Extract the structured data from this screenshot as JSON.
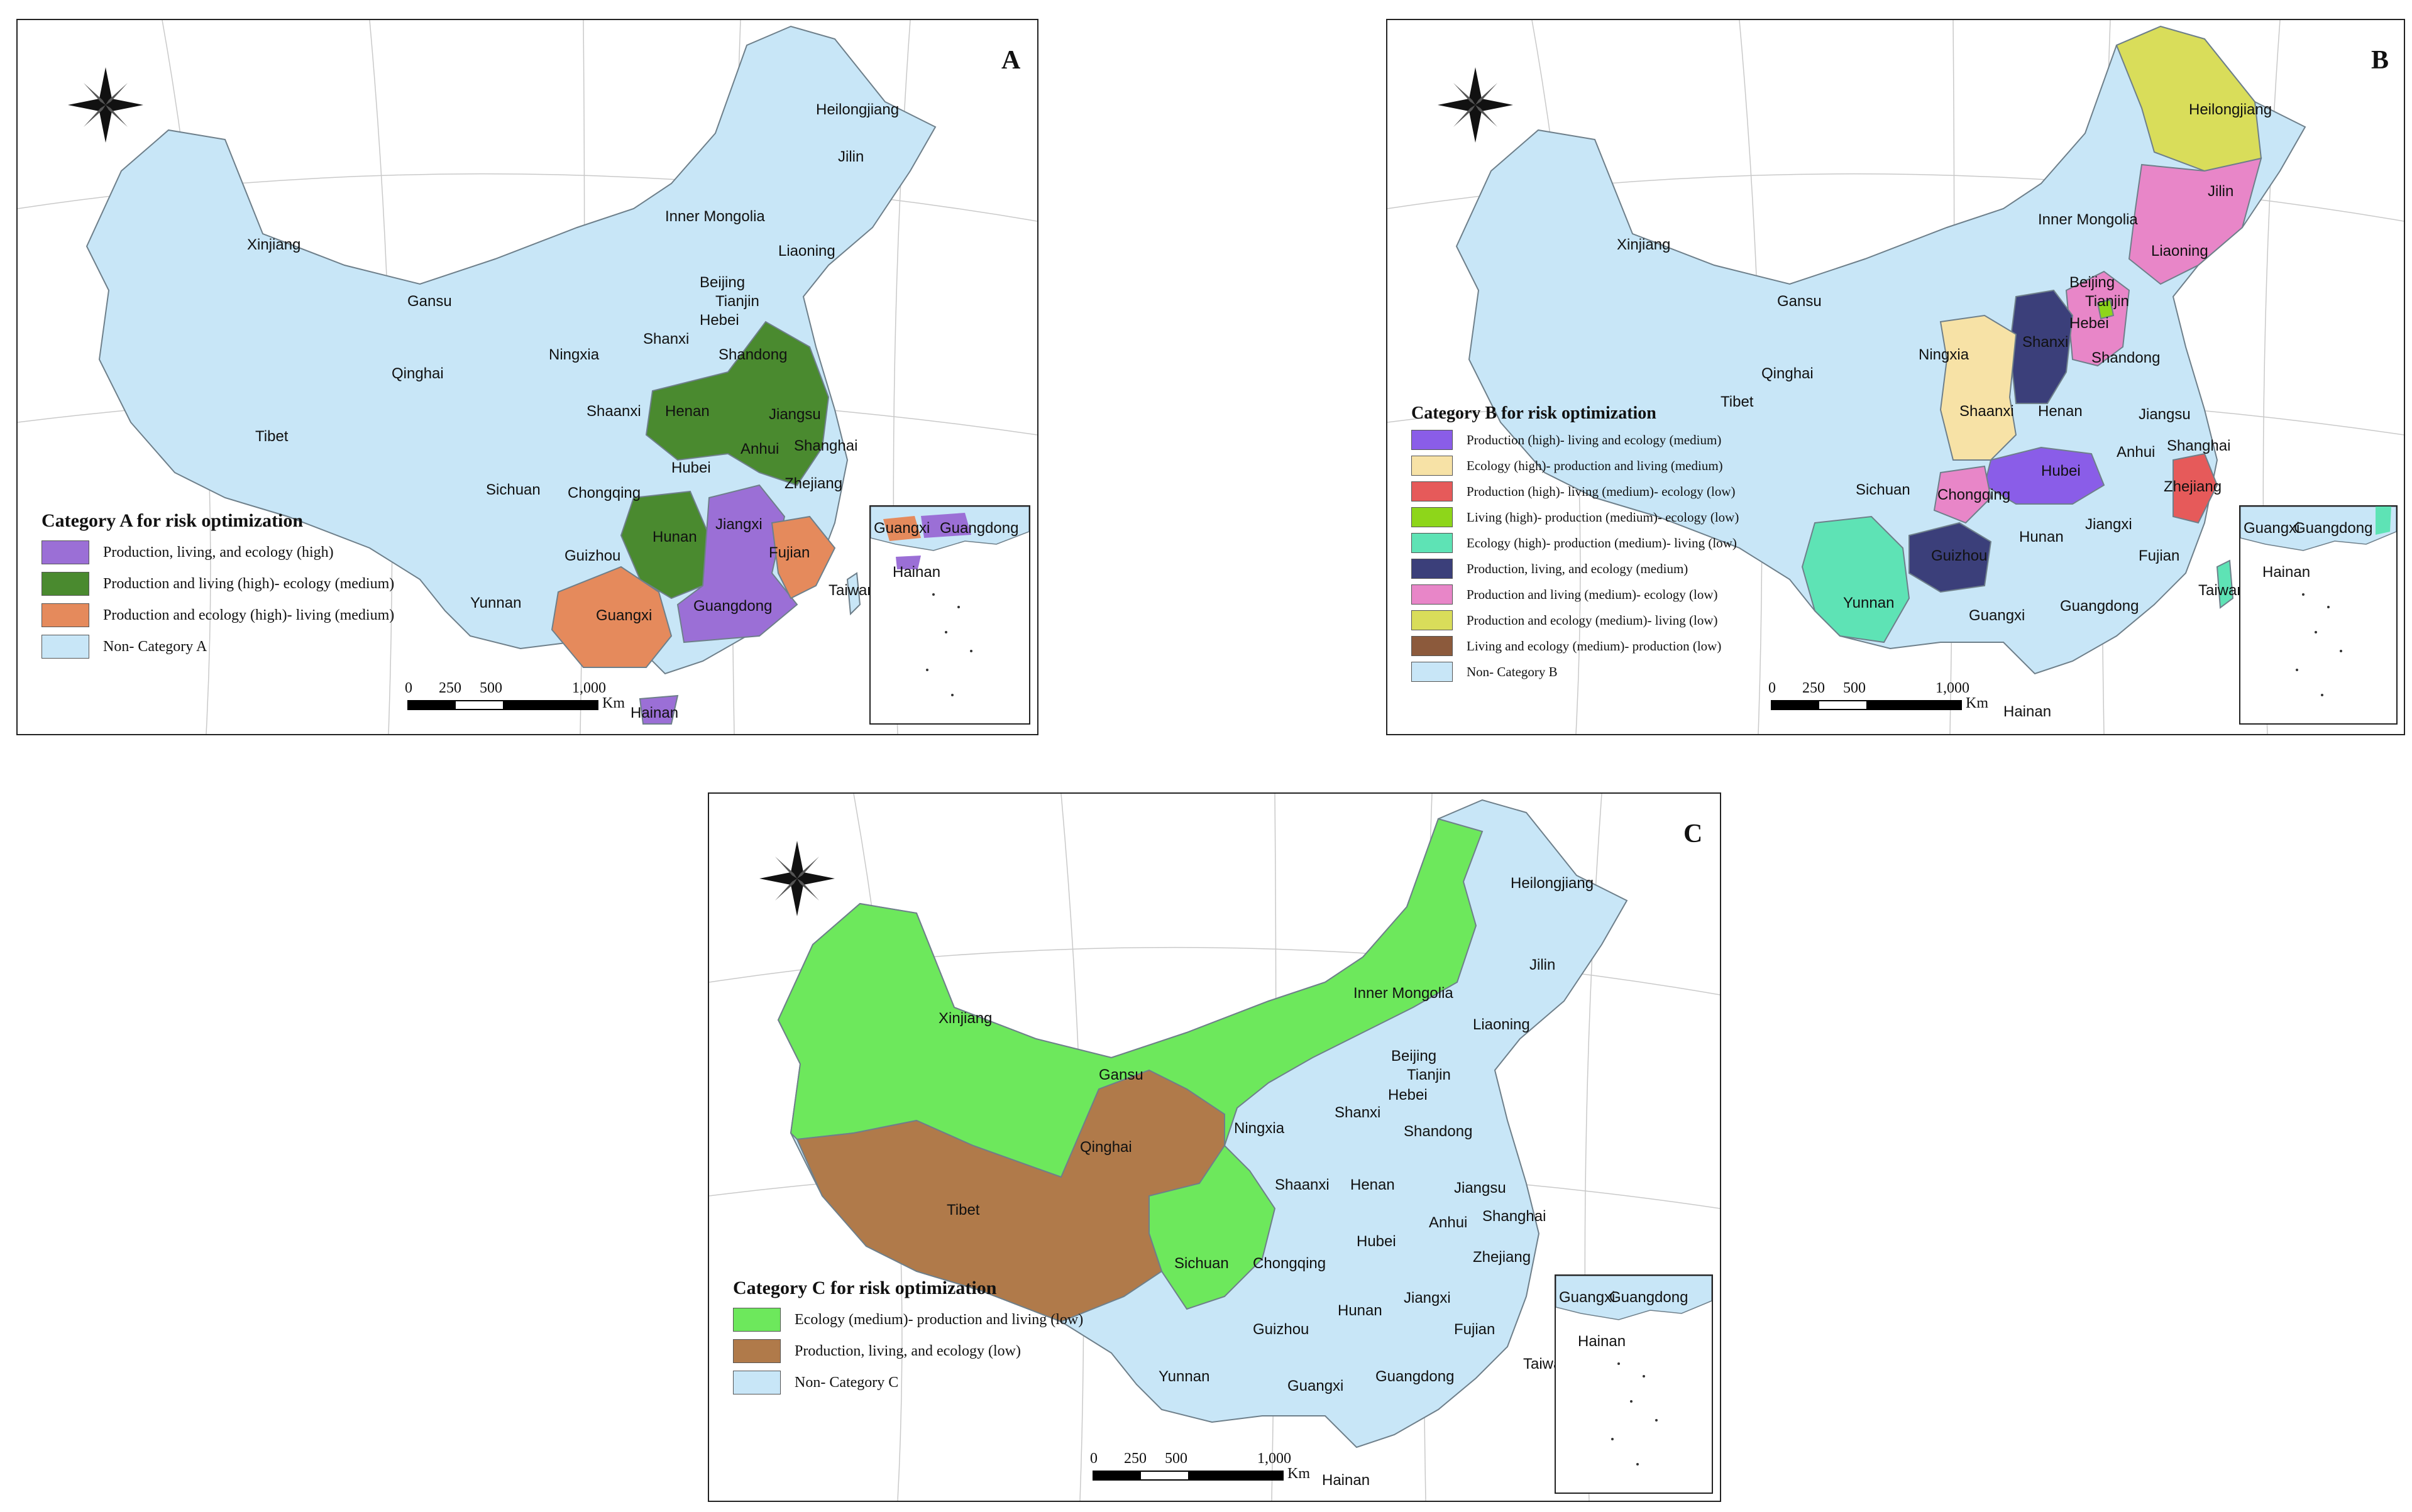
{
  "colors": {
    "non_category": "#c8e6f7",
    "boundary": "#6e7f8a",
    "a_prod_liv_eco_high": "#9b6fd6",
    "a_prod_liv_high_eco_med": "#4a8a2f",
    "a_prod_eco_high_liv_med": "#e58a5c",
    "b_prod_high_liv_eco_med": "#8a5de8",
    "b_eco_high_prod_liv_med": "#f7e2a6",
    "b_prod_high_liv_med_eco_low": "#e65a5a",
    "b_liv_high_prod_med_eco_low": "#8ed61a",
    "b_eco_high_prod_med_liv_low": "#5ee3b5",
    "b_prod_liv_eco_med": "#3b3f7a",
    "b_prod_liv_med_eco_low": "#e886c8",
    "b_prod_eco_med_liv_low": "#d9dd5a",
    "b_liv_eco_med_prod_low": "#8c5a3c",
    "c_eco_med_prod_liv_low": "#6de85c",
    "c_prod_liv_eco_low": "#b07a4a"
  },
  "panels": {
    "a": {
      "letter": "A",
      "legend_title": "Category A for risk optimization",
      "legend": [
        {
          "label": "Production, living, and ecology (high)",
          "color": "#9b6fd6"
        },
        {
          "label": "Production and living (high)- ecology (medium)",
          "color": "#4a8a2f"
        },
        {
          "label": "Production and ecology (high)- living (medium)",
          "color": "#e58a5c"
        },
        {
          "label": "Non- Category A",
          "color": "#c8e6f7"
        }
      ],
      "scale": {
        "ticks": [
          "0",
          "250",
          "500",
          "1,000"
        ],
        "unit": "Km"
      },
      "provinces": {
        "heilongjiang": "Heilongjiang",
        "jilin": "Jilin",
        "liaoning": "Liaoning",
        "inner_mongolia": "Inner Mongolia",
        "beijing": "Beijing",
        "tianjin": "Tianjin",
        "hebei": "Hebei",
        "shandong": "Shandong",
        "shanxi": "Shanxi",
        "henan": "Henan",
        "jiangsu": "Jiangsu",
        "anhui": "Anhui",
        "shanghai": "Shanghai",
        "zhejiang": "Zhejiang",
        "hubei": "Hubei",
        "hunan": "Hunan",
        "jiangxi": "Jiangxi",
        "fujian": "Fujian",
        "guangdong": "Guangdong",
        "guangxi": "Guangxi",
        "hainan": "Hainan",
        "taiwan": "Taiwan",
        "xinjiang": "Xinjiang",
        "gansu": "Gansu",
        "qinghai": "Qinghai",
        "ningxia": "Ningxia",
        "shaanxi": "Shaanxi",
        "tibet": "Tibet",
        "sichuan": "Sichuan",
        "chongqing": "Chongqing",
        "guizhou": "Guizhou",
        "yunnan": "Yunnan"
      },
      "inset_labels": {
        "guangxi": "Guangxi",
        "guangdong": "Guangdong",
        "hainan": "Hainan"
      }
    },
    "b": {
      "letter": "B",
      "legend_title": "Category B for risk optimization",
      "legend": [
        {
          "label": "Production (high)- living and ecology (medium)",
          "color": "#8a5de8"
        },
        {
          "label": "Ecology (high)- production and living (medium)",
          "color": "#f7e2a6"
        },
        {
          "label": "Production (high)- living (medium)- ecology (low)",
          "color": "#e65a5a"
        },
        {
          "label": "Living (high)- production (medium)- ecology (low)",
          "color": "#8ed61a"
        },
        {
          "label": "Ecology (high)- production (medium)- living (low)",
          "color": "#5ee3b5"
        },
        {
          "label": "Production, living, and ecology (medium)",
          "color": "#3b3f7a"
        },
        {
          "label": "Production and living (medium)- ecology (low)",
          "color": "#e886c8"
        },
        {
          "label": "Production and ecology (medium)- living (low)",
          "color": "#d9dd5a"
        },
        {
          "label": "Living and ecology (medium)- production (low)",
          "color": "#8c5a3c"
        },
        {
          "label": "Non- Category B",
          "color": "#c8e6f7"
        }
      ],
      "scale": {
        "ticks": [
          "0",
          "250",
          "500",
          "1,000"
        ],
        "unit": "Km"
      },
      "provinces": {
        "heilongjiang": "Heilongjiang",
        "jilin": "Jilin",
        "liaoning": "Liaoning",
        "inner_mongolia": "Inner Mongolia",
        "beijing": "Beijing",
        "tianjin": "Tianjin",
        "hebei": "Hebei",
        "shandong": "Shandong",
        "shanxi": "Shanxi",
        "henan": "Henan",
        "jiangsu": "Jiangsu",
        "anhui": "Anhui",
        "shanghai": "Shanghai",
        "zhejiang": "Zhejiang",
        "hubei": "Hubei",
        "hunan": "Hunan",
        "jiangxi": "Jiangxi",
        "fujian": "Fujian",
        "guangdong": "Guangdong",
        "guangxi": "Guangxi",
        "hainan": "Hainan",
        "taiwan": "Taiwan",
        "xinjiang": "Xinjiang",
        "gansu": "Gansu",
        "qinghai": "Qinghai",
        "ningxia": "Ningxia",
        "shaanxi": "Shaanxi",
        "tibet": "Tibet",
        "sichuan": "Sichuan",
        "chongqing": "Chongqing",
        "guizhou": "Guizhou",
        "yunnan": "Yunnan"
      },
      "inset_labels": {
        "guangxi": "Guangxi",
        "guangdong": "Guangdong",
        "hainan": "Hainan"
      }
    },
    "c": {
      "letter": "C",
      "legend_title": "Category C for risk optimization",
      "legend": [
        {
          "label": "Ecology (medium)- production and living (low)",
          "color": "#6de85c"
        },
        {
          "label": "Production, living, and ecology (low)",
          "color": "#b07a4a"
        },
        {
          "label": "Non- Category C",
          "color": "#c8e6f7"
        }
      ],
      "scale": {
        "ticks": [
          "0",
          "250",
          "500",
          "1,000"
        ],
        "unit": "Km"
      },
      "provinces": {
        "heilongjiang": "Heilongjiang",
        "jilin": "Jilin",
        "liaoning": "Liaoning",
        "inner_mongolia": "Inner Mongolia",
        "beijing": "Beijing",
        "tianjin": "Tianjin",
        "hebei": "Hebei",
        "shandong": "Shandong",
        "shanxi": "Shanxi",
        "henan": "Henan",
        "jiangsu": "Jiangsu",
        "anhui": "Anhui",
        "shanghai": "Shanghai",
        "zhejiang": "Zhejiang",
        "hubei": "Hubei",
        "hunan": "Hunan",
        "jiangxi": "Jiangxi",
        "fujian": "Fujian",
        "guangdong": "Guangdong",
        "guangxi": "Guangxi",
        "hainan": "Hainan",
        "taiwan": "Taiwan",
        "xinjiang": "Xinjiang",
        "gansu": "Gansu",
        "qinghai": "Qinghai",
        "ningxia": "Ningxia",
        "shaanxi": "Shaanxi",
        "tibet": "Tibet",
        "sichuan": "Sichuan",
        "chongqing": "Chongqing",
        "guizhou": "Guizhou",
        "yunnan": "Yunnan"
      },
      "inset_labels": {
        "guangxi": "Guangxi",
        "guangdong": "Guangdong",
        "hainan": "Hainan"
      }
    }
  }
}
